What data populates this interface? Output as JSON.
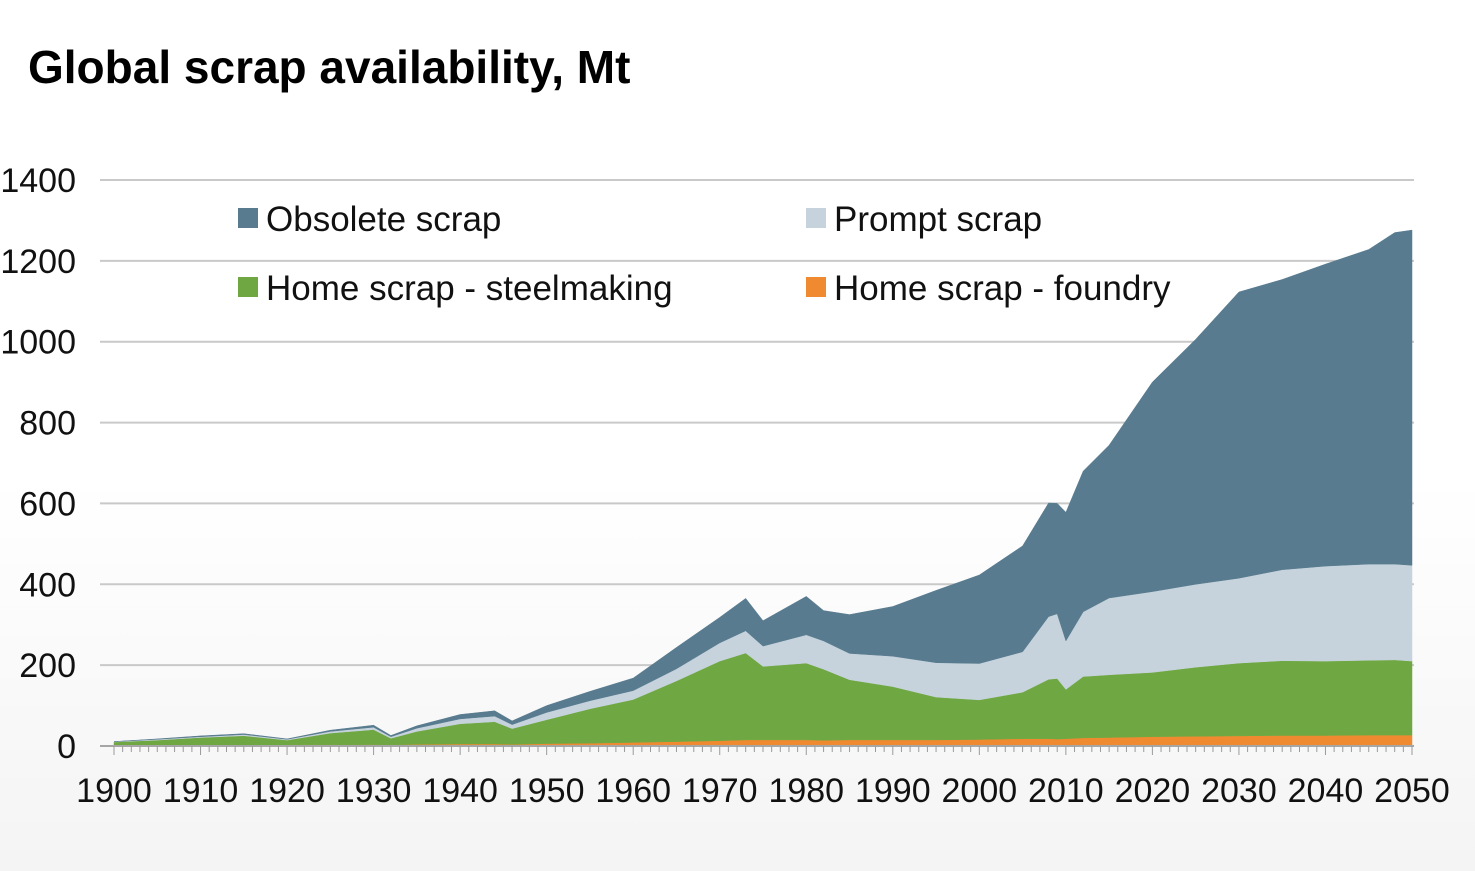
{
  "chart_data": {
    "type": "area",
    "stacked": true,
    "title": "Global scrap availability, Mt",
    "xlabel": "",
    "ylabel": "",
    "xlim": [
      1900,
      2050
    ],
    "ylim": [
      0,
      1400
    ],
    "grid": true,
    "x_ticks": [
      "1900",
      "1910",
      "1920",
      "1930",
      "1940",
      "1950",
      "1960",
      "1970",
      "1980",
      "1990",
      "2000",
      "2010",
      "2020",
      "2030",
      "2040",
      "2050"
    ],
    "y_ticks": [
      "0",
      "200",
      "400",
      "600",
      "800",
      "1000",
      "1200",
      "1400"
    ],
    "legend_position": "top-left",
    "x": [
      1900,
      1905,
      1910,
      1915,
      1920,
      1925,
      1930,
      1932,
      1935,
      1940,
      1944,
      1946,
      1950,
      1955,
      1960,
      1965,
      1970,
      1973,
      1975,
      1980,
      1982,
      1985,
      1990,
      1995,
      2000,
      2005,
      2008,
      2009,
      2010,
      2012,
      2015,
      2020,
      2025,
      2030,
      2035,
      2040,
      2045,
      2048,
      2050
    ],
    "series": [
      {
        "name": "Home scrap - foundry",
        "color": "#f08a30",
        "values": [
          1,
          1.5,
          2,
          2.5,
          2.5,
          3,
          3.5,
          3,
          4,
          5,
          5,
          4,
          6,
          7,
          9,
          11,
          13,
          15,
          15,
          15,
          14,
          15,
          15,
          15,
          16,
          18,
          18,
          17,
          18,
          20,
          21,
          23,
          24,
          25,
          26,
          26,
          27,
          27,
          27
        ]
      },
      {
        "name": "Home scrap - steelmaking",
        "color": "#6fa843",
        "values": [
          9,
          13,
          19,
          23,
          12,
          29,
          37,
          16,
          32,
          50,
          55,
          39,
          59,
          85,
          106,
          150,
          197,
          215,
          182,
          190,
          176,
          149,
          132,
          106,
          98,
          115,
          147,
          150,
          122,
          152,
          155,
          159,
          171,
          180,
          185,
          184,
          185,
          186,
          183
        ]
      },
      {
        "name": "Prompt scrap",
        "color": "#c6d3dc",
        "values": [
          1,
          2,
          2,
          3,
          2,
          4,
          6,
          4,
          8,
          12,
          14,
          10,
          18,
          20,
          22,
          30,
          45,
          55,
          50,
          70,
          70,
          65,
          75,
          85,
          90,
          100,
          155,
          160,
          120,
          160,
          190,
          200,
          205,
          210,
          225,
          235,
          238,
          237,
          237
        ]
      },
      {
        "name": "Obsolete scrap",
        "color": "#587b8f",
        "values": [
          0,
          1,
          2,
          2,
          1,
          3,
          5,
          3,
          6,
          11,
          13,
          9,
          17,
          23,
          31,
          53,
          63,
          80,
          63,
          95,
          75,
          96,
          123,
          179,
          219,
          262,
          281,
          273,
          318,
          348,
          378,
          518,
          606,
          708,
          718,
          747,
          778,
          820,
          829
        ]
      }
    ]
  },
  "legend": [
    {
      "label": "Obsolete scrap",
      "color": "#587b8f"
    },
    {
      "label": "Prompt scrap",
      "color": "#c6d3dc"
    },
    {
      "label": "Home scrap - steelmaking",
      "color": "#6fa843"
    },
    {
      "label": "Home scrap - foundry",
      "color": "#f08a30"
    }
  ]
}
